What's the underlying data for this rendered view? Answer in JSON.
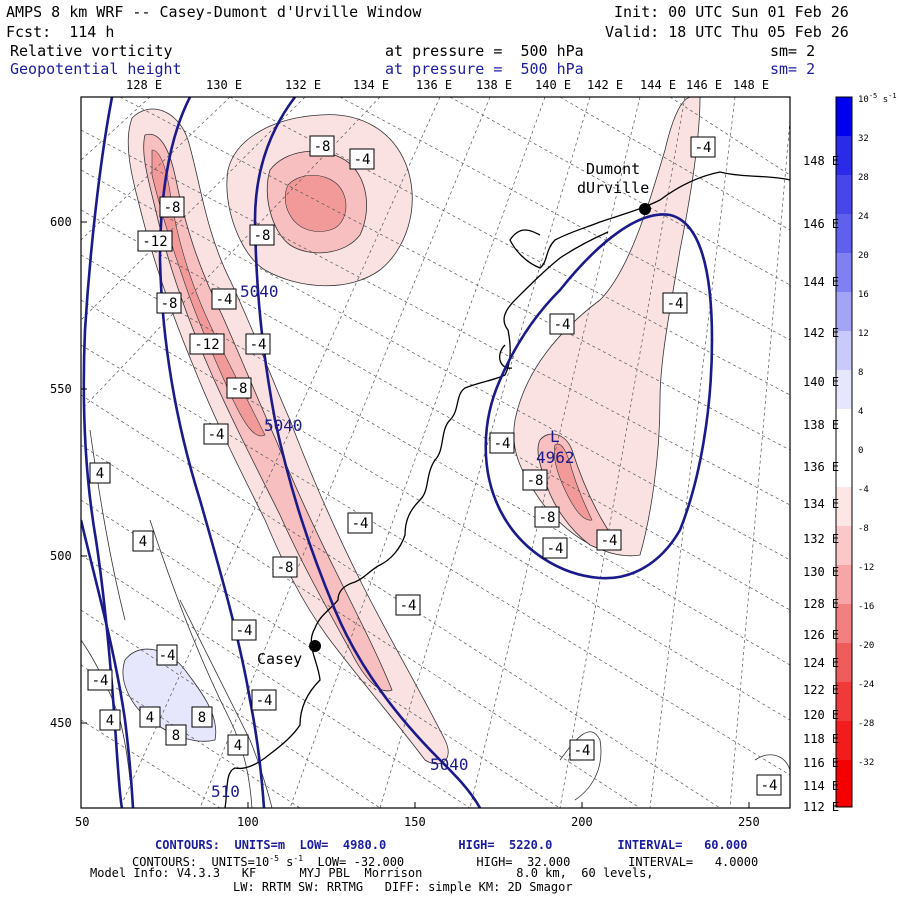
{
  "header": {
    "title": "AMPS 8 km WRF -- Casey-Dumont d'Urville Window",
    "init": "Init: 00 UTC Sun 01 Feb 26",
    "fcst": "Fcst:  114 h",
    "valid": "Valid: 18 UTC Thu 05 Feb 26",
    "field1": "Relative vorticity",
    "field1_level": "at pressure =  500 hPa",
    "field1_sm": "sm= 2",
    "field2": "Geopotential height",
    "field2_level": "at pressure =  500 hPa",
    "field2_sm": "sm= 2"
  },
  "top_lon_labels": [
    "128 E",
    "130 E",
    "132 E",
    "134 E",
    "136 E",
    "138 E",
    "140 E",
    "142 E",
    "144 E",
    "146 E",
    "148 E"
  ],
  "right_lon_labels": [
    "148 E",
    "146 E",
    "144 E",
    "142 E",
    "140 E",
    "138 E",
    "136 E",
    "134 E",
    "132 E",
    "130 E",
    "128 E",
    "126 E",
    "124 E",
    "122 E",
    "120 E",
    "118 E",
    "116 E",
    "114 E",
    "112 E"
  ],
  "y_axis": [
    "600",
    "550",
    "500",
    "450"
  ],
  "x_axis": [
    "50",
    "100",
    "150",
    "200",
    "250"
  ],
  "stations": {
    "dumont": [
      "Dumont",
      "dUrville"
    ],
    "casey": "Casey"
  },
  "low": {
    "letter": "L",
    "value": "4962"
  },
  "height_labels": [
    "5040",
    "5040",
    "5040",
    "510"
  ],
  "vort_labels": [
    "-8",
    "-4",
    "-8",
    "-12",
    "-8",
    "-8",
    "-4",
    "-4",
    "-12",
    "-4",
    "-8",
    "-4",
    "-4",
    "-8",
    "-4",
    "-4",
    "-4",
    "4",
    "4",
    "-4",
    "4",
    "4",
    "8",
    "8",
    "4",
    "-4",
    "-4",
    "-4",
    "-4",
    "-4",
    "-4",
    "-8",
    "-8",
    "-4",
    "-4",
    "-4",
    "-4",
    "-4"
  ],
  "colorbar": {
    "unit": "10",
    "unit_exp": "-5",
    "unit_suffix": " s",
    "unit_suffix_exp": "-1",
    "ticks": [
      "32",
      "28",
      "24",
      "20",
      "16",
      "12",
      "8",
      "4",
      "0",
      "-4",
      "-8",
      "-12",
      "-16",
      "-20",
      "-24",
      "-28",
      "-32"
    ],
    "colors": [
      "#0000f0",
      "#2a2ae8",
      "#4646ea",
      "#6060ee",
      "#8080f2",
      "#a4a4f6",
      "#cacafa",
      "#e6e6fc",
      "#ffffff",
      "#ffffff",
      "#fde6e6",
      "#fac8c8",
      "#f6a6a6",
      "#f28080",
      "#ee5c5c",
      "#f03a3a",
      "#f21c1c",
      "#f40000"
    ]
  },
  "footer": {
    "line1": "CONTOURS:  UNITS=m  LOW=  4980.0          HIGH=  5220.0         INTERVAL=   60.000",
    "line2a": "CONTOURS:  UNITS=10",
    "line2b": "-5",
    "line2c": " s",
    "line2d": "-1",
    "line2e": "  LOW= -32.000          HIGH=  32.000        INTERVAL=   4.0000",
    "line3": "Model Info: V4.3.3   KF      MYJ PBL  Morrison             8.0 km,  60 levels,",
    "line4": "LW: RRTM SW: RRTMG   DIFF: simple KM: 2D Smagor"
  }
}
